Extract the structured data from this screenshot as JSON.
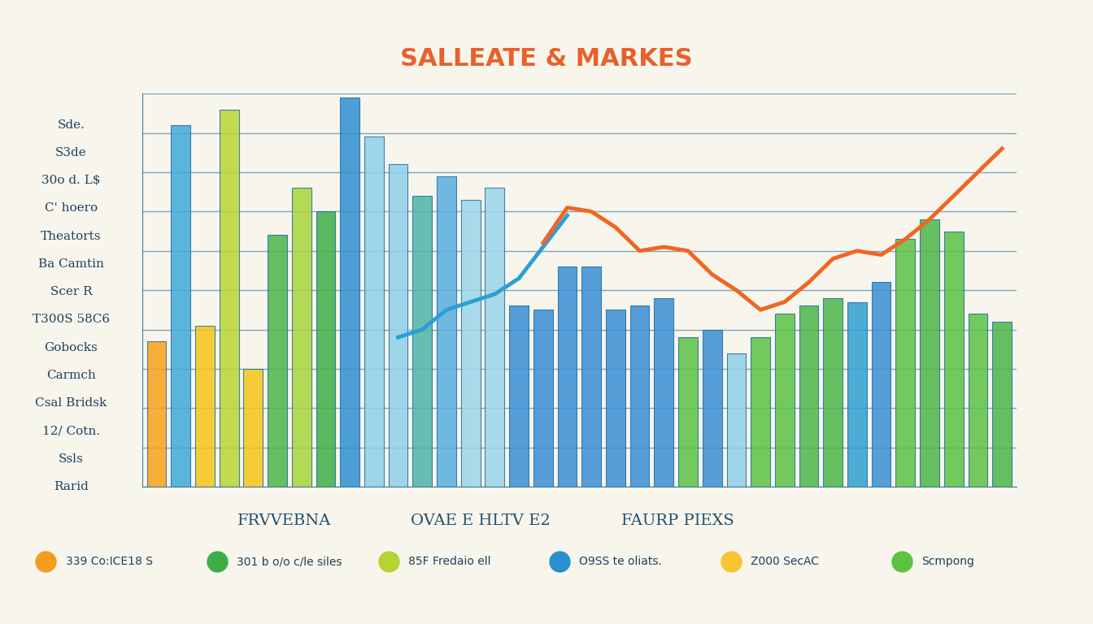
{
  "chart_data": {
    "type": "bar",
    "title": "SALLEATE & MARKES",
    "side_labels": [
      "Sde.",
      "S3de",
      "30o d. L$",
      "C' hoero",
      "Theatorts",
      "Ba Camtin",
      "Scer R",
      "T300S 58C6",
      "Gobocks",
      "Carmch",
      "Csal Bridsk",
      "12/ Cotn.",
      "Ssls",
      "Rarid"
    ],
    "group_labels": [
      "FRVVEBNA",
      "OVAE E HLTV E2",
      "FAURP PIEXS"
    ],
    "annotations": [
      {
        "text": "339 Co:ICE18 S",
        "color": "#f39c1f"
      },
      {
        "text": "301 b o/o c/le siles",
        "color": "#3fae49"
      },
      {
        "text": "85F Fredaio ell",
        "color": "#b5d334"
      },
      {
        "text": "O9SS te oliats.",
        "color": "#2a8fd0"
      },
      {
        "text": "Z000 SecAC",
        "color": "#f7c531"
      },
      {
        "text": "Scmpong",
        "color": "#5cc244"
      }
    ],
    "categories": [
      null,
      null,
      null,
      null,
      null,
      null,
      null,
      null,
      null,
      null,
      null,
      null,
      null,
      null,
      null,
      null,
      null,
      null,
      null,
      null,
      null,
      null,
      null,
      null,
      null,
      null,
      null,
      null,
      null,
      null,
      null,
      null,
      null,
      null,
      null,
      null
    ],
    "values": [
      37,
      92,
      41,
      96,
      30,
      64,
      76,
      70,
      99,
      89,
      82,
      74,
      79,
      73,
      76,
      46,
      45,
      56,
      56,
      45,
      46,
      48,
      38,
      40,
      34,
      38,
      44,
      46,
      48,
      47,
      52,
      63,
      68,
      65,
      44,
      42
    ],
    "colors": [
      "#f7a21b",
      "#3fa9d8",
      "#f5c518",
      "#b9d532",
      "#f5c518",
      "#4cb648",
      "#a8d43a",
      "#3fae49",
      "#2f8fd0",
      "#8fd0e8",
      "#8fd0e8",
      "#4fb3a8",
      "#5aaee0",
      "#9cd6ea",
      "#9cd6ea",
      "#3a8fd5",
      "#3a8fd5",
      "#3a8fd5",
      "#3a8fd5",
      "#3a8fd5",
      "#3a8fd5",
      "#3a8fd5",
      "#5cc244",
      "#3a8fd5",
      "#8fd0e8",
      "#5cc244",
      "#5cc244",
      "#4cb648",
      "#4cb648",
      "#2f9fd0",
      "#3a8fd5",
      "#5cc244",
      "#4cb648",
      "#5cc244",
      "#5cc244",
      "#4cb648"
    ],
    "ylim": [
      0,
      100
    ],
    "yticks": [
      0,
      10,
      20,
      30,
      40,
      50,
      60,
      70,
      80,
      90,
      100
    ],
    "grid": true,
    "tick_labels": false,
    "series": [
      {
        "type": "line",
        "color": "#2a9fd6",
        "values": [
          null,
          null,
          null,
          null,
          null,
          null,
          null,
          null,
          null,
          null,
          38,
          40,
          45,
          47,
          49,
          53,
          61,
          69,
          null,
          null,
          null,
          null,
          null,
          null,
          null,
          null,
          null,
          null,
          null,
          null,
          null,
          null,
          null,
          null,
          null,
          null
        ]
      },
      {
        "type": "line",
        "color": "#f26522",
        "values": [
          null,
          null,
          null,
          null,
          null,
          null,
          null,
          null,
          null,
          null,
          null,
          null,
          null,
          null,
          null,
          null,
          62,
          71,
          70,
          66,
          60,
          61,
          60,
          54,
          50,
          45,
          47,
          52,
          58,
          60,
          59,
          63,
          68,
          74,
          80,
          86
        ]
      }
    ]
  }
}
